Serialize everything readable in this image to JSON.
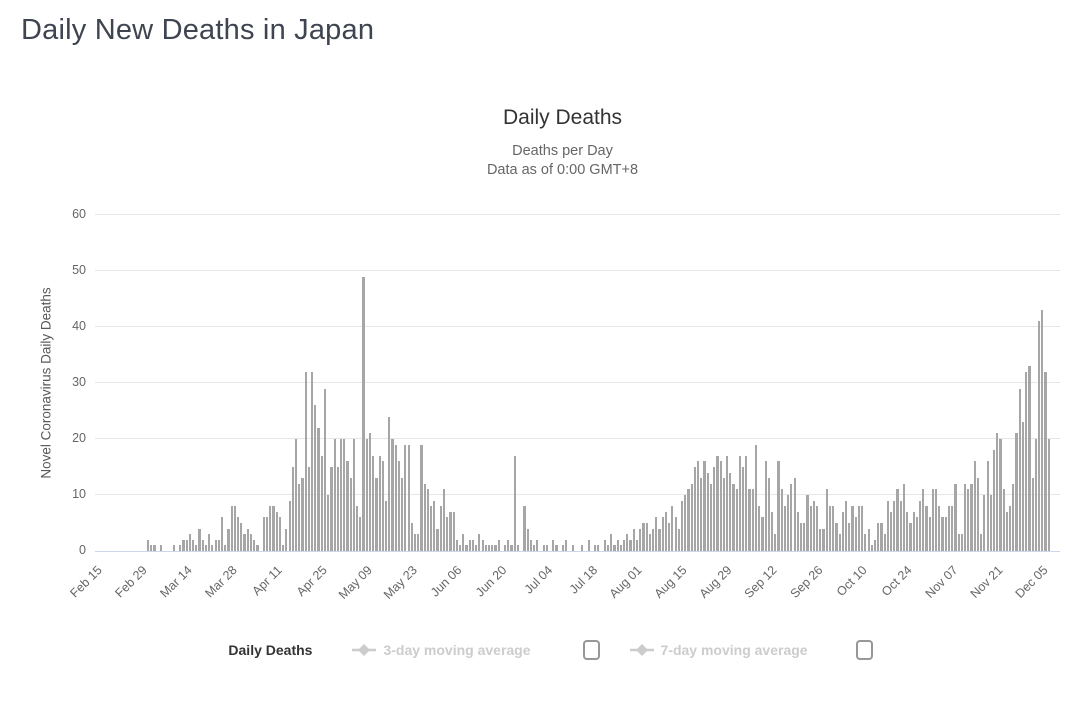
{
  "page": {
    "title": "Daily New Deaths in Japan"
  },
  "chart": {
    "title": "Daily Deaths",
    "subtitle_line1": "Deaths per Day",
    "subtitle_line2": "Data as of 0:00 GMT+8",
    "y_axis_title": "Novel Coronavirus Daily Deaths"
  },
  "legend": {
    "items": [
      {
        "label": "Daily Deaths",
        "marker": "circle",
        "enabled": true,
        "has_checkbox": false
      },
      {
        "label": "3-day moving average",
        "marker": "line-diamond",
        "enabled": false,
        "has_checkbox": true,
        "checked": false
      },
      {
        "label": "7-day moving average",
        "marker": "line-diamond",
        "enabled": false,
        "has_checkbox": true,
        "checked": false
      }
    ]
  },
  "colors": {
    "bar": "#a6a6a6",
    "gridline": "#e6e6e6",
    "axis_line": "#ccd6eb",
    "axis_label": "#666666",
    "chart_title": "#333333",
    "subtitle": "#666666",
    "page_title": "#3e4450",
    "legend_enabled_text": "#333333",
    "legend_disabled_text": "#cccccc",
    "legend_marker_disabled": "#cccccc"
  },
  "chart_data": {
    "type": "bar",
    "title": "Daily Deaths",
    "ylabel": "Novel Coronavirus Daily Deaths",
    "ylim": [
      0,
      60
    ],
    "y_ticks": [
      0,
      10,
      20,
      30,
      40,
      50,
      60
    ],
    "grid": true,
    "legend_position": "bottom",
    "x_tick_labels": [
      "Feb 15",
      "Feb 29",
      "Mar 14",
      "Mar 28",
      "Apr 11",
      "Apr 25",
      "May 09",
      "May 23",
      "Jun 06",
      "Jun 20",
      "Jul 04",
      "Jul 18",
      "Aug 01",
      "Aug 15",
      "Aug 29",
      "Sep 12",
      "Sep 26",
      "Oct 10",
      "Oct 24",
      "Nov 07",
      "Nov 21",
      "Dec 05"
    ],
    "x_tick_interval_days": 14,
    "x_axis_total_days": 300,
    "series": [
      {
        "name": "Daily Deaths",
        "start_date": "Feb 15",
        "values": [
          0,
          0,
          0,
          0,
          0,
          0,
          0,
          0,
          0,
          0,
          0,
          0,
          0,
          0,
          0,
          0,
          2,
          1,
          1,
          0,
          1,
          0,
          0,
          0,
          1,
          0,
          1,
          2,
          2,
          3,
          2,
          1,
          4,
          2,
          1,
          3,
          1,
          2,
          2,
          6,
          1,
          4,
          8,
          8,
          6,
          5,
          3,
          4,
          3,
          2,
          1,
          0,
          6,
          6,
          8,
          8,
          7,
          6,
          1,
          4,
          9,
          15,
          20,
          12,
          13,
          32,
          15,
          32,
          26,
          22,
          17,
          29,
          10,
          15,
          20,
          15,
          20,
          20,
          16,
          13,
          20,
          8,
          6,
          49,
          20,
          21,
          17,
          13,
          17,
          16,
          9,
          24,
          20,
          19,
          16,
          13,
          19,
          19,
          5,
          3,
          3,
          19,
          12,
          11,
          8,
          9,
          4,
          8,
          11,
          6,
          7,
          7,
          2,
          1,
          3,
          1,
          2,
          2,
          1,
          3,
          2,
          1,
          1,
          1,
          1,
          2,
          0,
          1,
          2,
          1,
          17,
          1,
          0,
          8,
          4,
          2,
          1,
          2,
          0,
          1,
          1,
          0,
          2,
          1,
          0,
          1,
          2,
          0,
          1,
          0,
          0,
          1,
          0,
          2,
          0,
          1,
          1,
          0,
          2,
          1,
          3,
          1,
          2,
          1,
          2,
          3,
          2,
          4,
          2,
          4,
          5,
          5,
          3,
          4,
          6,
          4,
          6,
          7,
          5,
          8,
          6,
          4,
          9,
          10,
          11,
          12,
          15,
          16,
          13,
          16,
          14,
          12,
          15,
          17,
          16,
          13,
          17,
          14,
          12,
          11,
          17,
          15,
          17,
          11,
          11,
          19,
          8,
          6,
          16,
          13,
          7,
          3,
          16,
          11,
          8,
          10,
          12,
          13,
          7,
          5,
          5,
          10,
          8,
          9,
          8,
          4,
          4,
          11,
          8,
          8,
          5,
          3,
          7,
          9,
          5,
          8,
          6,
          8,
          8,
          3,
          4,
          1,
          2,
          5,
          5,
          3,
          9,
          7,
          9,
          11,
          9,
          12,
          7,
          5,
          7,
          6,
          9,
          11,
          8,
          6,
          11,
          11,
          8,
          6,
          6,
          8,
          8,
          12,
          3,
          3,
          12,
          11,
          12,
          16,
          13,
          3,
          10,
          16,
          10,
          18,
          21,
          20,
          11,
          7,
          8,
          12,
          21,
          29,
          23,
          32,
          33,
          13,
          20,
          41,
          43,
          32,
          20,
          0,
          0,
          0
        ]
      }
    ]
  }
}
